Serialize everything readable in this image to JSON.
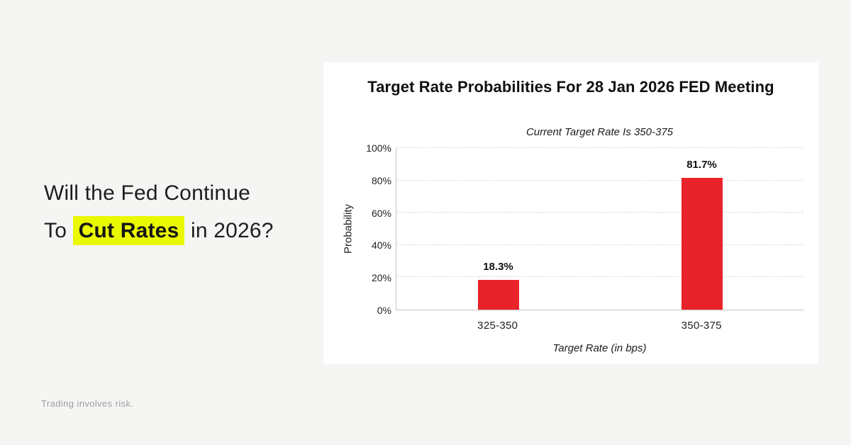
{
  "page": {
    "background_color": "#F5F5F3",
    "headline": {
      "line1": "Will the Fed Continue",
      "line2_prefix": "To ",
      "line2_highlight": "Cut Rates",
      "line2_suffix": " in 2026?",
      "highlight_color": "#EAF900",
      "text_color": "#1E1E1E"
    },
    "disclaimer": "Trading involves risk."
  },
  "card": {
    "background_color": "#FFFFFF",
    "title": "Target Rate Probabilities For 28 Jan 2026 FED Meeting",
    "subtitle": "Current Target Rate Is 350-375"
  },
  "chart_data": {
    "type": "bar",
    "title": "Target Rate Probabilities For 28 Jan 2026 FED Meeting",
    "subtitle": "Current Target Rate Is 350-375",
    "categories": [
      "325-350",
      "350-375"
    ],
    "values": [
      18.3,
      81.7
    ],
    "value_labels": [
      "18.3%",
      "81.7%"
    ],
    "xlabel": "Target Rate (in bps)",
    "ylabel": "Probability",
    "ylim": [
      0,
      100
    ],
    "yticks": [
      0,
      20,
      40,
      60,
      80,
      100
    ],
    "ytick_labels": [
      "0%",
      "20%",
      "40%",
      "60%",
      "80%",
      "100%"
    ],
    "bar_color": "#E8232A",
    "grid": "horizontal-dashed",
    "legend": "none"
  }
}
